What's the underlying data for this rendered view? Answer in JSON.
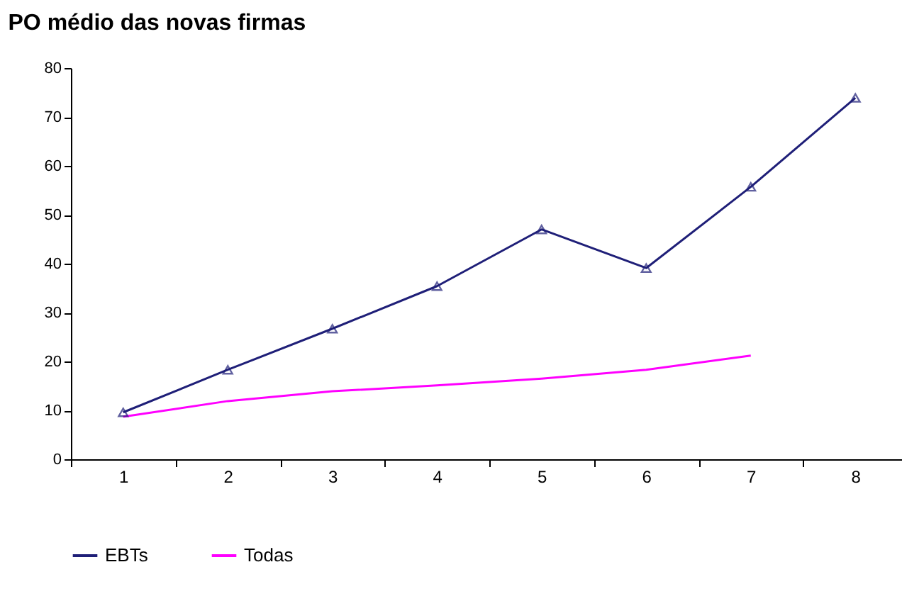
{
  "chart_data": {
    "type": "line",
    "title": "PO médio das novas firmas",
    "categories": [
      "1",
      "2",
      "3",
      "4",
      "5",
      "6",
      "7",
      "8"
    ],
    "series": [
      {
        "name": "EBTs",
        "color": "#1f1f78",
        "marker": "triangle",
        "values": [
          9.6,
          18.3,
          26.7,
          35.4,
          47,
          39.1,
          55.7,
          73.9
        ]
      },
      {
        "name": "Todas",
        "color": "#ff00ff",
        "marker": "none",
        "values": [
          8.7,
          11.9,
          13.9,
          15.1,
          16.5,
          18.3,
          21.2,
          null
        ]
      }
    ],
    "ylim": [
      0,
      80
    ],
    "yticks": [
      0,
      10,
      20,
      30,
      40,
      50,
      60,
      70,
      80
    ],
    "grid": false,
    "legend": "bottom"
  }
}
